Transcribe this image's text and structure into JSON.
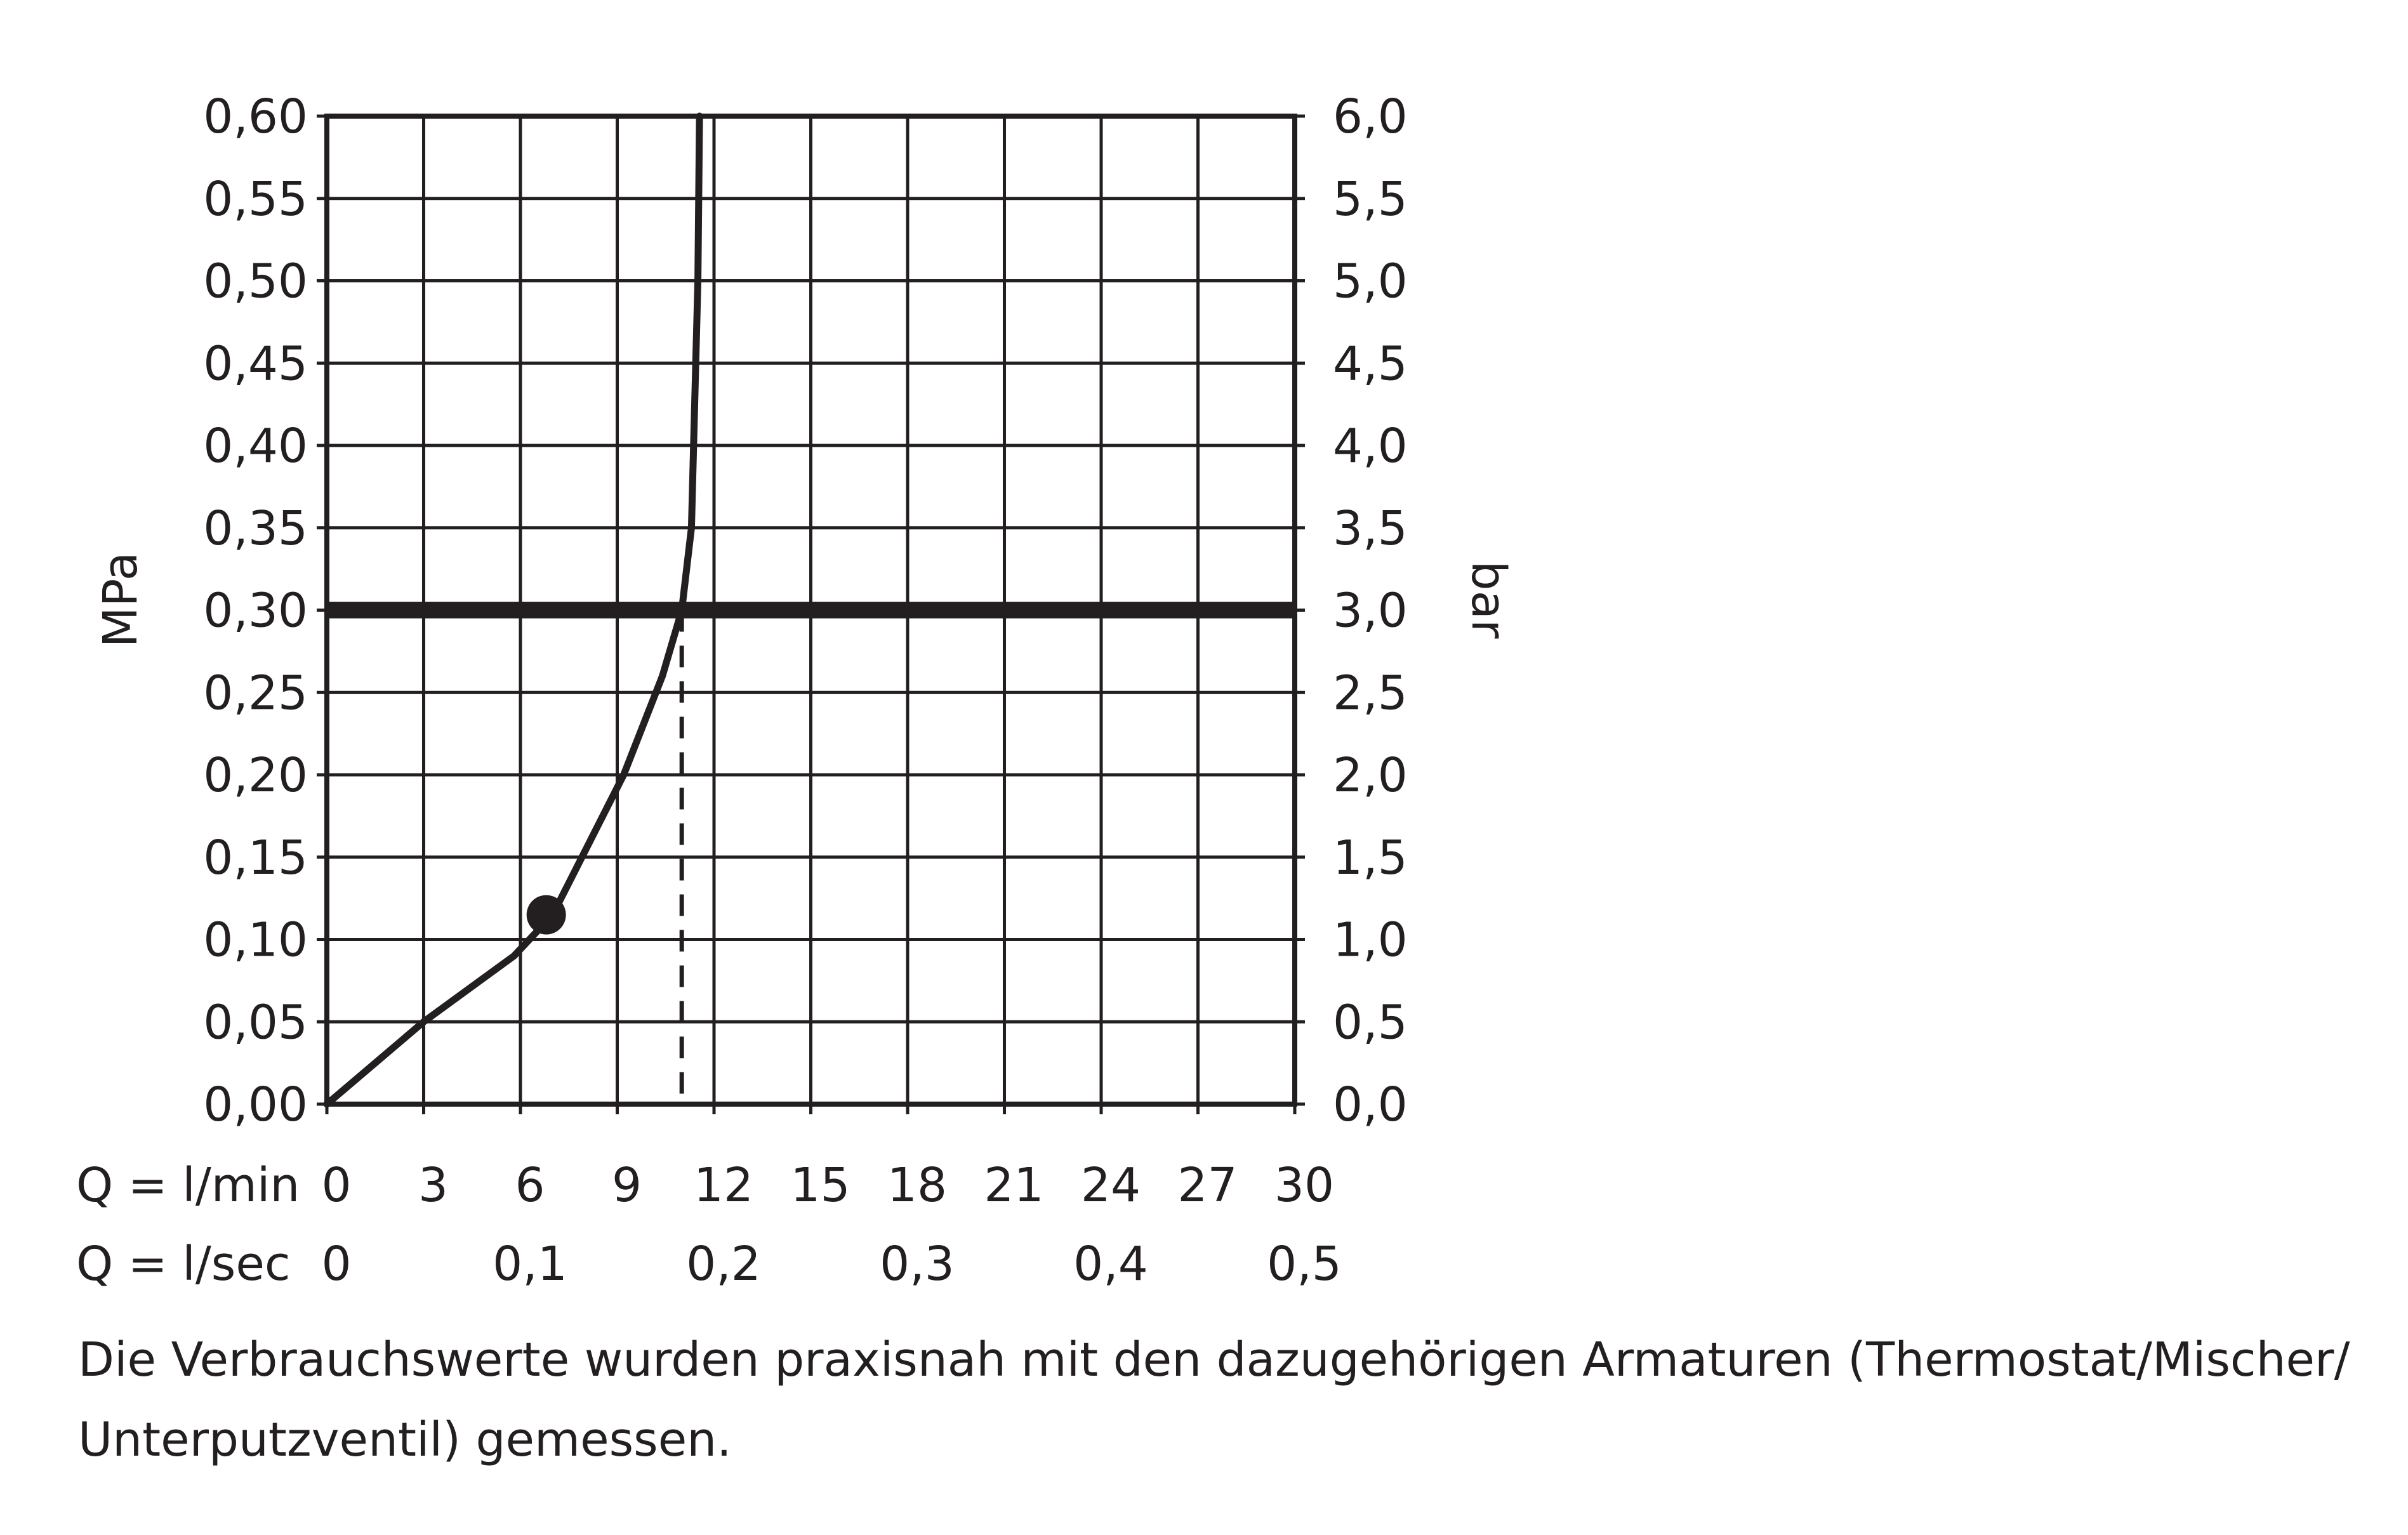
{
  "chart_data": {
    "type": "line",
    "ylabel_left": "MPa",
    "ylabel_right": "bar",
    "yticks_left": [
      "0,00",
      "0,05",
      "0,10",
      "0,15",
      "0,20",
      "0,25",
      "0,30",
      "0,35",
      "0,40",
      "0,45",
      "0,50",
      "0,55",
      "0,60"
    ],
    "yticks_right": [
      "0,0",
      "0,5",
      "1,0",
      "1,5",
      "2,0",
      "2,5",
      "3,0",
      "3,5",
      "4,0",
      "4,5",
      "5,0",
      "5,5",
      "6,0"
    ],
    "ylim": [
      0,
      0.6
    ],
    "xlim": [
      0,
      30
    ],
    "xticks_lmin": {
      "label": "Q = l/min",
      "values": [
        0,
        3,
        6,
        9,
        12,
        15,
        18,
        21,
        24,
        27,
        30
      ],
      "labels": [
        "0",
        "3",
        "6",
        "9",
        "12",
        "15",
        "18",
        "21",
        "24",
        "27",
        "30"
      ]
    },
    "xticks_lsec": {
      "label": "Q = l/sec",
      "positions": [
        0,
        6,
        12,
        18,
        24,
        30
      ],
      "labels": [
        "0",
        "0,1",
        "0,2",
        "0,3",
        "0,4",
        "0,5"
      ]
    },
    "grid": true,
    "series": [
      {
        "x": [
          0,
          3,
          5.8,
          7,
          9.2,
          10.4,
          11.0,
          11.3,
          11.5,
          11.55
        ],
        "y": [
          0,
          0.05,
          0.09,
          0.115,
          0.2,
          0.26,
          0.3,
          0.35,
          0.5,
          0.6
        ]
      }
    ],
    "reference_line_y": 0.3,
    "reference_drop_x": 11.0,
    "marker": {
      "x": 6.8,
      "y": 0.115
    }
  },
  "caption": {
    "line1": "Die Verbrauchswerte wurden praxisnah mit den dazugehörigen Armaturen (Thermostat/Mischer/",
    "line2": "Unterputzventil) gemessen."
  },
  "colors": {
    "ink": "#231f20",
    "background": "#ffffff"
  }
}
